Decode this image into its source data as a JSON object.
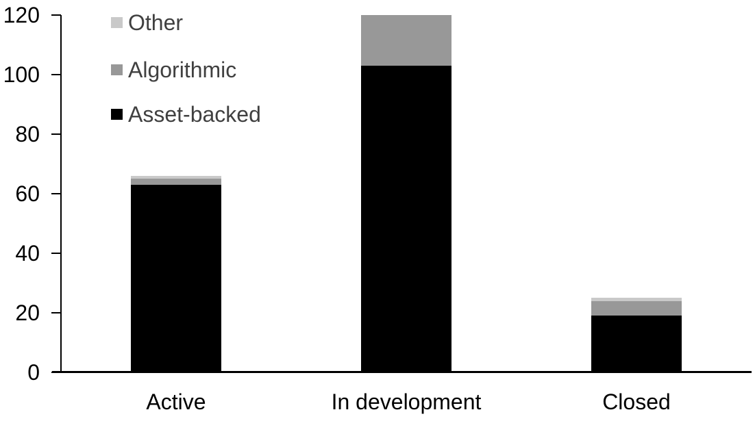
{
  "chart_data": {
    "type": "bar",
    "stacked": true,
    "title": "",
    "xlabel": "",
    "ylabel": "",
    "categories": [
      "Active",
      "In development",
      "Closed"
    ],
    "series": [
      {
        "name": "Asset-backed",
        "color": "#000000",
        "values": [
          63,
          103,
          19
        ]
      },
      {
        "name": "Algorithmic",
        "color": "#989898",
        "values": [
          2,
          17,
          5
        ]
      },
      {
        "name": "Other",
        "color": "#c9c9c9",
        "values": [
          1,
          0,
          1
        ]
      }
    ],
    "totals": [
      66,
      120,
      25
    ],
    "ylim": [
      0,
      120
    ],
    "yticks": [
      0,
      20,
      40,
      60,
      80,
      100,
      120
    ],
    "grid": false,
    "legend_position": "top-left",
    "legend_order_top_to_bottom": [
      "Other",
      "Algorithmic",
      "Asset-backed"
    ]
  },
  "colors": {
    "axis": "#000000",
    "tick_label": "#000000",
    "category_label": "#000000",
    "legend_text": "#404040",
    "background": "#ffffff"
  }
}
